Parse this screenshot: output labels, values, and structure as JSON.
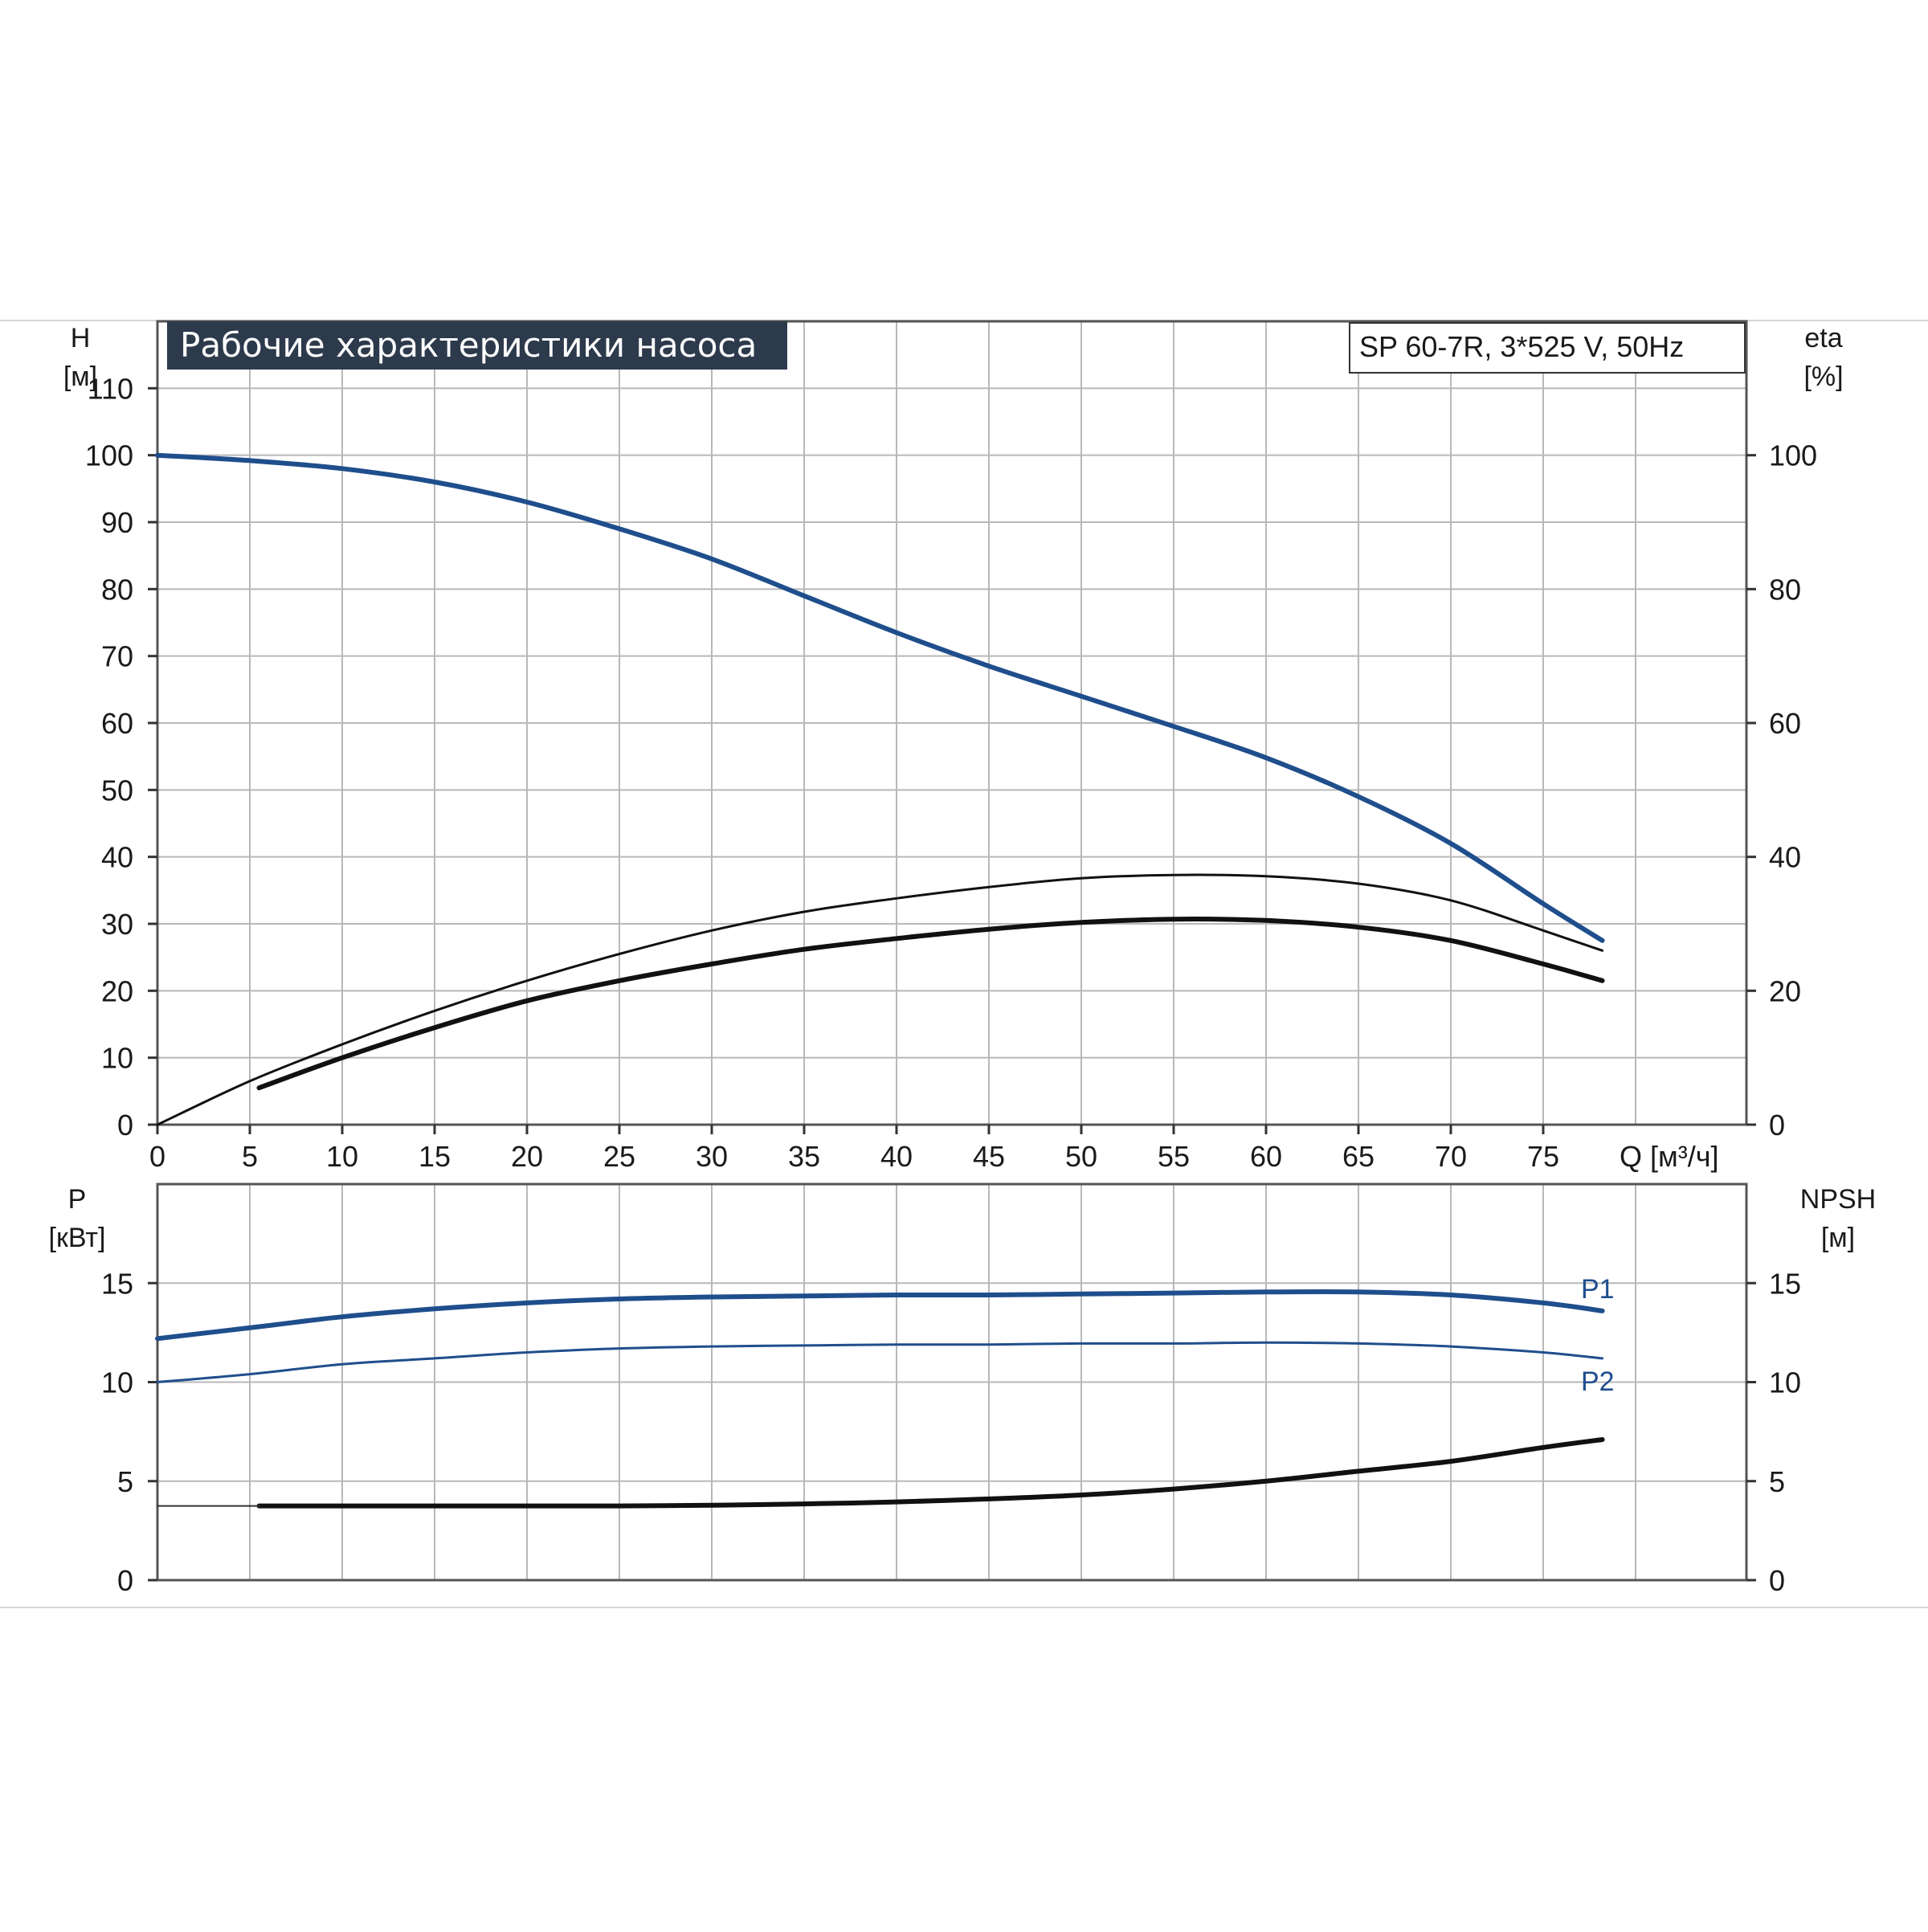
{
  "title": "Рабочие характеристики насоса",
  "model_label": "SP 60-7R, 3*525 V, 50Hz",
  "colors": {
    "blue": "#1f4e8c",
    "black": "#111111",
    "grid": "#b8b8b8",
    "title_bg": "#2d3a4c"
  },
  "chart_data": [
    {
      "type": "line",
      "name": "top-panel",
      "xlabel": "Q [м³/ч]",
      "ylabel_top": "H",
      "ylabel_unit": "[м]",
      "y2label_top": "eta",
      "y2label_unit": "[%]",
      "xlim": [
        0,
        86
      ],
      "ylim": [
        0,
        120
      ],
      "y2lim": [
        0,
        120
      ],
      "x_ticks": [
        0,
        5,
        10,
        15,
        20,
        25,
        30,
        35,
        40,
        45,
        50,
        55,
        60,
        65,
        70,
        75
      ],
      "y_ticks": [
        0,
        10,
        20,
        30,
        40,
        50,
        60,
        70,
        80,
        90,
        100,
        110
      ],
      "y2_ticks": [
        0,
        20,
        40,
        60,
        80,
        100
      ],
      "grid": true,
      "series": [
        {
          "key": "H",
          "axis": "left",
          "color": "#1f4e8c",
          "width": 6,
          "x": [
            0,
            5,
            10,
            15,
            20,
            25,
            30,
            35,
            40,
            45,
            50,
            55,
            60,
            65,
            70,
            75,
            78.2
          ],
          "y": [
            100,
            99.2,
            98,
            96,
            93,
            89,
            84.5,
            79,
            73.5,
            68.5,
            64,
            59.5,
            54.8,
            49,
            42,
            33,
            27.5
          ]
        },
        {
          "key": "eta_upper",
          "axis": "left",
          "color": "#111111",
          "width": 3,
          "x": [
            0,
            5,
            10,
            15,
            20,
            25,
            30,
            35,
            40,
            45,
            50,
            55,
            60,
            65,
            70,
            75,
            78.2
          ],
          "y": [
            0,
            6.5,
            12,
            17,
            21.5,
            25.5,
            29,
            31.8,
            33.8,
            35.5,
            36.8,
            37.3,
            37.1,
            36,
            33.5,
            29,
            26
          ]
        },
        {
          "key": "eta_lower",
          "axis": "left",
          "color": "#111111",
          "width": 6,
          "x": [
            5.5,
            10,
            15,
            20,
            25,
            30,
            35,
            40,
            45,
            50,
            55,
            60,
            65,
            70,
            75,
            78.2
          ],
          "y": [
            5.5,
            10,
            14.5,
            18.5,
            21.5,
            24,
            26.2,
            27.8,
            29.2,
            30.2,
            30.7,
            30.5,
            29.5,
            27.5,
            24,
            21.5
          ]
        }
      ]
    },
    {
      "type": "line",
      "name": "bottom-panel",
      "ylabel_top": "P",
      "ylabel_unit": "[кВт]",
      "y2label_top": "NPSH",
      "y2label_unit": "[м]",
      "xlim": [
        0,
        86
      ],
      "ylim": [
        0,
        20
      ],
      "y_ticks": [
        0,
        5,
        10,
        15
      ],
      "y2_ticks": [
        0,
        5,
        10,
        15
      ],
      "grid": true,
      "series": [
        {
          "key": "P1",
          "name": "P1",
          "color": "#1f4e8c",
          "width": 6,
          "x": [
            0,
            5.5,
            10,
            15,
            20,
            25,
            30,
            35,
            40,
            45,
            50,
            55,
            60,
            65,
            70,
            75,
            78.2
          ],
          "y": [
            12.2,
            12.8,
            13.3,
            13.7,
            14,
            14.2,
            14.3,
            14.35,
            14.4,
            14.4,
            14.45,
            14.5,
            14.55,
            14.55,
            14.4,
            14.0,
            13.6
          ]
        },
        {
          "key": "P2",
          "name": "P2",
          "color": "#1f4e8c",
          "width": 3,
          "x": [
            0,
            5,
            10,
            15,
            20,
            25,
            30,
            35,
            40,
            45,
            50,
            55,
            60,
            65,
            70,
            75,
            78.2
          ],
          "y": [
            10,
            10.4,
            10.9,
            11.2,
            11.5,
            11.7,
            11.8,
            11.85,
            11.9,
            11.9,
            11.95,
            11.95,
            12.0,
            11.95,
            11.8,
            11.5,
            11.2
          ]
        },
        {
          "key": "NPSH",
          "color": "#111111",
          "width": 6,
          "x": [
            5.5,
            10,
            15,
            20,
            25,
            30,
            35,
            40,
            45,
            50,
            55,
            60,
            65,
            70,
            75,
            78.2
          ],
          "y": [
            3.75,
            3.75,
            3.75,
            3.75,
            3.75,
            3.78,
            3.85,
            3.95,
            4.1,
            4.3,
            4.6,
            5.0,
            5.5,
            6.0,
            6.7,
            7.1
          ]
        },
        {
          "key": "NPSH_ext",
          "color": "#333333",
          "width": 2,
          "x": [
            0,
            5.5
          ],
          "y": [
            3.75,
            3.75
          ]
        }
      ],
      "labels": {
        "p1": "P1",
        "p2": "P2"
      }
    }
  ]
}
